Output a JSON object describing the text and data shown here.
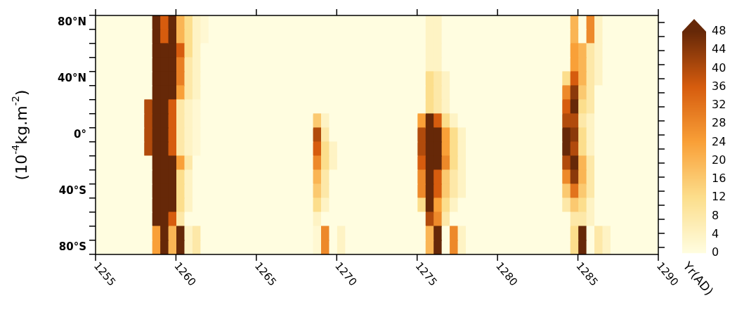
{
  "chart_data": {
    "type": "heatmap",
    "xlabel": "Yr(AD)",
    "ylabel": "(10$^{-4}$kg.m$^{-2}$)",
    "x": [
      1255.25,
      1255.75,
      1256.25,
      1256.75,
      1257.25,
      1257.75,
      1258.25,
      1258.75,
      1259.25,
      1259.75,
      1260.25,
      1260.75,
      1261.25,
      1261.75,
      1262.25,
      1262.75,
      1263.25,
      1263.75,
      1264.25,
      1264.75,
      1265.25,
      1265.75,
      1266.25,
      1266.75,
      1267.25,
      1267.75,
      1268.25,
      1268.75,
      1269.25,
      1269.75,
      1270.25,
      1270.75,
      1271.25,
      1271.75,
      1272.25,
      1272.75,
      1273.25,
      1273.75,
      1274.25,
      1274.75,
      1275.25,
      1275.75,
      1276.25,
      1276.75,
      1277.25,
      1277.75,
      1278.25,
      1278.75,
      1279.25,
      1279.75,
      1280.25,
      1280.75,
      1281.25,
      1281.75,
      1282.25,
      1282.75,
      1283.25,
      1283.75,
      1284.25,
      1284.75,
      1285.25,
      1285.75,
      1286.25,
      1286.75,
      1287.25,
      1287.75,
      1288.25,
      1288.75,
      1289.25,
      1289.75
    ],
    "xlim": [
      1255,
      1290
    ],
    "xticks": [
      1255,
      1260,
      1265,
      1270,
      1275,
      1280,
      1285,
      1290
    ],
    "y_categories": [
      "80°N",
      null,
      null,
      null,
      "40°N",
      null,
      null,
      null,
      "0°",
      null,
      null,
      null,
      "40°S",
      null,
      null,
      null,
      "80°S"
    ],
    "cells": [
      [
        0,
        0,
        0,
        0,
        0,
        0,
        0,
        48,
        36,
        48,
        20,
        12,
        4,
        2,
        0,
        0,
        0,
        0,
        0,
        0,
        0,
        0,
        0,
        0,
        0,
        0,
        0,
        0,
        0,
        0,
        0,
        0,
        0,
        0,
        0,
        0,
        0,
        0,
        0,
        0,
        0,
        4,
        4,
        0,
        0,
        0,
        0,
        0,
        0,
        0,
        0,
        0,
        0,
        0,
        0,
        0,
        0,
        0,
        0,
        20,
        0,
        28,
        4,
        0,
        0,
        0,
        0,
        0,
        0,
        0
      ],
      [
        0,
        0,
        0,
        0,
        0,
        0,
        0,
        48,
        36,
        48,
        20,
        12,
        4,
        2,
        0,
        0,
        0,
        0,
        0,
        0,
        0,
        0,
        0,
        0,
        0,
        0,
        0,
        0,
        0,
        0,
        0,
        0,
        0,
        0,
        0,
        0,
        0,
        0,
        0,
        0,
        0,
        4,
        4,
        0,
        0,
        0,
        0,
        0,
        0,
        0,
        0,
        0,
        0,
        0,
        0,
        0,
        0,
        0,
        0,
        20,
        0,
        28,
        4,
        0,
        0,
        0,
        0,
        0,
        0,
        0
      ],
      [
        0,
        0,
        0,
        0,
        0,
        0,
        0,
        48,
        48,
        48,
        36,
        12,
        4,
        0,
        0,
        0,
        0,
        0,
        0,
        0,
        0,
        0,
        0,
        0,
        0,
        0,
        0,
        0,
        0,
        0,
        0,
        0,
        0,
        0,
        0,
        0,
        0,
        0,
        0,
        0,
        0,
        4,
        4,
        0,
        0,
        0,
        0,
        0,
        0,
        0,
        0,
        0,
        0,
        0,
        0,
        0,
        0,
        0,
        0,
        24,
        20,
        8,
        4,
        0,
        0,
        0,
        0,
        0,
        0,
        0
      ],
      [
        0,
        0,
        0,
        0,
        0,
        0,
        0,
        48,
        48,
        48,
        30,
        8,
        4,
        0,
        0,
        0,
        0,
        0,
        0,
        0,
        0,
        0,
        0,
        0,
        0,
        0,
        0,
        0,
        0,
        0,
        0,
        0,
        0,
        0,
        0,
        0,
        0,
        0,
        0,
        0,
        0,
        4,
        4,
        0,
        0,
        0,
        0,
        0,
        0,
        0,
        0,
        0,
        0,
        0,
        0,
        0,
        0,
        0,
        0,
        24,
        20,
        8,
        4,
        0,
        0,
        0,
        0,
        0,
        0,
        0
      ],
      [
        0,
        0,
        0,
        0,
        0,
        0,
        0,
        48,
        48,
        48,
        30,
        8,
        4,
        0,
        0,
        0,
        0,
        0,
        0,
        0,
        0,
        0,
        0,
        0,
        0,
        0,
        0,
        0,
        0,
        0,
        0,
        0,
        0,
        0,
        0,
        0,
        0,
        0,
        0,
        0,
        0,
        12,
        8,
        4,
        0,
        0,
        0,
        0,
        0,
        0,
        0,
        0,
        0,
        0,
        0,
        0,
        0,
        0,
        12,
        36,
        20,
        8,
        4,
        0,
        0,
        0,
        0,
        0,
        0,
        0
      ],
      [
        0,
        0,
        0,
        0,
        0,
        0,
        0,
        48,
        48,
        48,
        24,
        8,
        4,
        0,
        0,
        0,
        0,
        0,
        0,
        0,
        0,
        0,
        0,
        0,
        0,
        0,
        0,
        0,
        0,
        0,
        0,
        0,
        0,
        0,
        0,
        0,
        0,
        0,
        0,
        0,
        0,
        12,
        8,
        4,
        0,
        0,
        0,
        0,
        0,
        0,
        0,
        0,
        0,
        0,
        0,
        0,
        0,
        0,
        28,
        44,
        16,
        8,
        0,
        0,
        0,
        0,
        0,
        0,
        0,
        0
      ],
      [
        0,
        0,
        0,
        0,
        0,
        0,
        40,
        48,
        48,
        36,
        8,
        4,
        2,
        0,
        0,
        0,
        0,
        0,
        0,
        0,
        0,
        0,
        0,
        0,
        0,
        0,
        0,
        0,
        0,
        0,
        0,
        0,
        0,
        0,
        0,
        0,
        0,
        0,
        0,
        0,
        0,
        12,
        8,
        4,
        0,
        0,
        0,
        0,
        0,
        0,
        0,
        0,
        0,
        0,
        0,
        0,
        0,
        0,
        36,
        48,
        12,
        8,
        0,
        0,
        0,
        0,
        0,
        0,
        0,
        0
      ],
      [
        0,
        0,
        0,
        0,
        0,
        0,
        40,
        48,
        48,
        36,
        8,
        4,
        2,
        0,
        0,
        0,
        0,
        0,
        0,
        0,
        0,
        0,
        0,
        0,
        0,
        0,
        0,
        16,
        4,
        0,
        0,
        0,
        0,
        0,
        0,
        0,
        0,
        0,
        0,
        0,
        24,
        48,
        36,
        12,
        4,
        0,
        0,
        0,
        0,
        0,
        0,
        0,
        0,
        0,
        0,
        0,
        0,
        0,
        40,
        40,
        8,
        4,
        0,
        0,
        0,
        0,
        0,
        0,
        0,
        0
      ],
      [
        0,
        0,
        0,
        0,
        0,
        0,
        40,
        48,
        48,
        36,
        8,
        4,
        2,
        0,
        0,
        0,
        0,
        0,
        0,
        0,
        0,
        0,
        0,
        0,
        0,
        0,
        0,
        40,
        8,
        0,
        0,
        0,
        0,
        0,
        0,
        0,
        0,
        0,
        0,
        0,
        40,
        48,
        48,
        24,
        12,
        4,
        0,
        0,
        0,
        0,
        0,
        0,
        0,
        0,
        0,
        0,
        0,
        0,
        48,
        44,
        12,
        4,
        0,
        0,
        0,
        0,
        0,
        0,
        0,
        0
      ],
      [
        0,
        0,
        0,
        0,
        0,
        0,
        40,
        48,
        48,
        36,
        8,
        4,
        2,
        0,
        0,
        0,
        0,
        0,
        0,
        0,
        0,
        0,
        0,
        0,
        0,
        0,
        0,
        36,
        12,
        4,
        0,
        0,
        0,
        0,
        0,
        0,
        0,
        0,
        0,
        0,
        40,
        48,
        48,
        24,
        12,
        4,
        0,
        0,
        0,
        0,
        0,
        0,
        0,
        0,
        0,
        0,
        0,
        0,
        48,
        40,
        12,
        4,
        0,
        0,
        0,
        0,
        0,
        0,
        0,
        0
      ],
      [
        0,
        0,
        0,
        0,
        0,
        0,
        0,
        48,
        48,
        48,
        24,
        8,
        0,
        0,
        0,
        0,
        0,
        0,
        0,
        0,
        0,
        0,
        0,
        0,
        0,
        0,
        0,
        28,
        12,
        4,
        0,
        0,
        0,
        0,
        0,
        0,
        0,
        0,
        0,
        0,
        36,
        48,
        48,
        28,
        12,
        4,
        0,
        0,
        0,
        0,
        0,
        0,
        0,
        0,
        0,
        0,
        0,
        0,
        40,
        48,
        20,
        8,
        0,
        0,
        0,
        0,
        0,
        0,
        0,
        0
      ],
      [
        0,
        0,
        0,
        0,
        0,
        0,
        0,
        48,
        48,
        48,
        12,
        4,
        0,
        0,
        0,
        0,
        0,
        0,
        0,
        0,
        0,
        0,
        0,
        0,
        0,
        0,
        0,
        20,
        8,
        0,
        0,
        0,
        0,
        0,
        0,
        0,
        0,
        0,
        0,
        0,
        28,
        48,
        36,
        16,
        8,
        4,
        0,
        0,
        0,
        0,
        0,
        0,
        0,
        0,
        0,
        0,
        0,
        0,
        28,
        44,
        20,
        8,
        0,
        0,
        0,
        0,
        0,
        0,
        0,
        0
      ],
      [
        0,
        0,
        0,
        0,
        0,
        0,
        0,
        48,
        48,
        48,
        12,
        4,
        0,
        0,
        0,
        0,
        0,
        0,
        0,
        0,
        0,
        0,
        0,
        0,
        0,
        0,
        0,
        16,
        8,
        0,
        0,
        0,
        0,
        0,
        0,
        0,
        0,
        0,
        0,
        0,
        28,
        48,
        36,
        16,
        8,
        4,
        0,
        0,
        0,
        0,
        0,
        0,
        0,
        0,
        0,
        0,
        0,
        0,
        16,
        32,
        16,
        8,
        0,
        0,
        0,
        0,
        0,
        0,
        0,
        0
      ],
      [
        0,
        0,
        0,
        0,
        0,
        0,
        0,
        48,
        48,
        48,
        12,
        4,
        0,
        0,
        0,
        0,
        0,
        0,
        0,
        0,
        0,
        0,
        0,
        0,
        0,
        0,
        0,
        12,
        4,
        0,
        0,
        0,
        0,
        0,
        0,
        0,
        0,
        0,
        0,
        0,
        12,
        48,
        24,
        12,
        4,
        0,
        0,
        0,
        0,
        0,
        0,
        0,
        0,
        0,
        0,
        0,
        0,
        0,
        8,
        16,
        12,
        4,
        0,
        0,
        0,
        0,
        0,
        0,
        0,
        0
      ],
      [
        0,
        0,
        0,
        0,
        0,
        0,
        0,
        48,
        48,
        36,
        8,
        0,
        0,
        0,
        0,
        0,
        0,
        0,
        0,
        0,
        0,
        0,
        0,
        0,
        0,
        0,
        0,
        4,
        0,
        0,
        0,
        0,
        0,
        0,
        0,
        0,
        0,
        0,
        0,
        0,
        0,
        40,
        28,
        8,
        0,
        0,
        0,
        0,
        0,
        0,
        0,
        0,
        0,
        0,
        0,
        0,
        0,
        0,
        0,
        8,
        8,
        4,
        0,
        0,
        0,
        0,
        0,
        0,
        0,
        0
      ],
      [
        0,
        0,
        0,
        0,
        0,
        0,
        0,
        24,
        48,
        20,
        48,
        4,
        8,
        0,
        0,
        0,
        0,
        0,
        0,
        0,
        0,
        0,
        0,
        0,
        0,
        0,
        0,
        2,
        28,
        0,
        4,
        0,
        0,
        0,
        0,
        0,
        0,
        0,
        0,
        0,
        0,
        20,
        48,
        0,
        28,
        4,
        0,
        0,
        0,
        0,
        0,
        0,
        0,
        0,
        0,
        0,
        0,
        0,
        0,
        12,
        48,
        0,
        8,
        4,
        0,
        0,
        0,
        0,
        0,
        0
      ],
      [
        0,
        0,
        0,
        0,
        0,
        0,
        0,
        24,
        48,
        20,
        48,
        4,
        8,
        0,
        0,
        0,
        0,
        0,
        0,
        0,
        0,
        0,
        0,
        0,
        0,
        0,
        0,
        2,
        28,
        0,
        4,
        0,
        0,
        0,
        0,
        0,
        0,
        0,
        0,
        0,
        0,
        20,
        48,
        0,
        28,
        4,
        0,
        0,
        0,
        0,
        0,
        0,
        0,
        0,
        0,
        0,
        0,
        0,
        0,
        12,
        48,
        0,
        8,
        4,
        0,
        0,
        0,
        0,
        0,
        0
      ]
    ],
    "clim": [
      0,
      48
    ],
    "cticks": [
      0,
      4,
      8,
      12,
      16,
      20,
      24,
      28,
      32,
      36,
      40,
      44,
      48
    ]
  }
}
